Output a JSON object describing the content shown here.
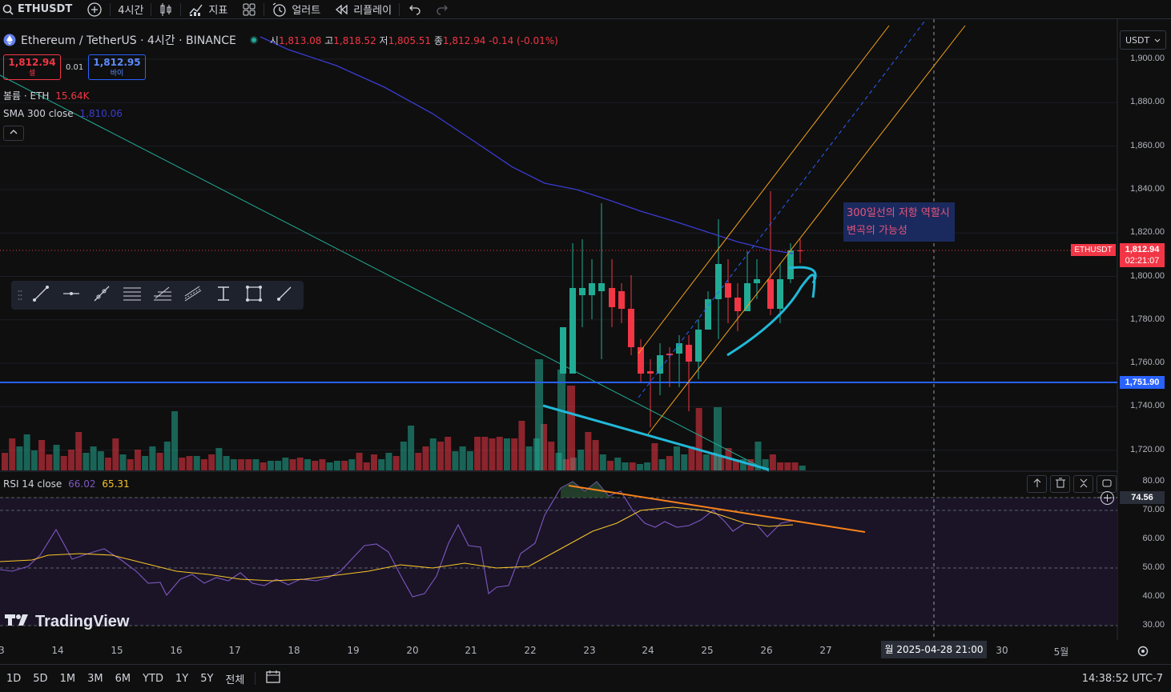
{
  "topbar": {
    "symbol": "ETHUSDT",
    "interval": "4시간",
    "indicators": "지표",
    "alert": "얼러트",
    "replay": "리플레이"
  },
  "legend": {
    "title": "Ethereum / TetherUS · 4시간 · BINANCE",
    "open_label": "시",
    "open": "1,813.08",
    "high_label": "고",
    "high": "1,818.52",
    "low_label": "저",
    "low": "1,805.51",
    "close_label": "종",
    "close": "1,812.94",
    "change": "-0.14 (-0.01%)"
  },
  "trade": {
    "sell_price": "1,812.94",
    "sell_label": "셀",
    "spread": "0.01",
    "buy_price": "1,812.95",
    "buy_label": "바이"
  },
  "volume_legend": {
    "label": "볼륨 · ETH",
    "value": "15.64K"
  },
  "sma_legend": {
    "label": "SMA 300 close",
    "value": "1,810.06"
  },
  "annotation": {
    "line1": "300일선의 저항 역할시",
    "line2": "변곡의 가능성"
  },
  "price_axis": {
    "currency": "USDT",
    "ticks": [
      "1,900.00",
      "1,880.00",
      "1,860.00",
      "1,840.00",
      "1,820.00",
      "1,800.00",
      "1,780.00",
      "1,760.00",
      "1,740.00",
      "1,720.00"
    ],
    "symbol_tag": "ETHUSDT",
    "last_price": "1,812.94",
    "countdown": "02:21:07",
    "hline_price": "1,751.90"
  },
  "rsi": {
    "label": "RSI 14 close",
    "value1": "66.02",
    "value2": "65.31",
    "ticks": [
      "80.00",
      "70.00",
      "60.00",
      "50.00",
      "40.00",
      "30.00"
    ],
    "cross_value": "74.56"
  },
  "time_axis": {
    "labels": [
      "3",
      "14",
      "15",
      "16",
      "17",
      "18",
      "19",
      "20",
      "21",
      "22",
      "23",
      "24",
      "25",
      "26",
      "27",
      "30",
      "5월"
    ],
    "crosshair": "월 2025-04-28   21:00"
  },
  "logo": "TradingView",
  "bottombar": {
    "ranges": [
      "1D",
      "5D",
      "1M",
      "3M",
      "6M",
      "YTD",
      "1Y",
      "5Y",
      "전체"
    ],
    "clock": "14:38:52 UTC-7"
  },
  "colors": {
    "up": "#22ab94",
    "down": "#f23645",
    "sma": "#3b3bd4",
    "hline": "#2962ff",
    "channel": "#f7a21b",
    "cyan": "#22b8d8"
  }
}
